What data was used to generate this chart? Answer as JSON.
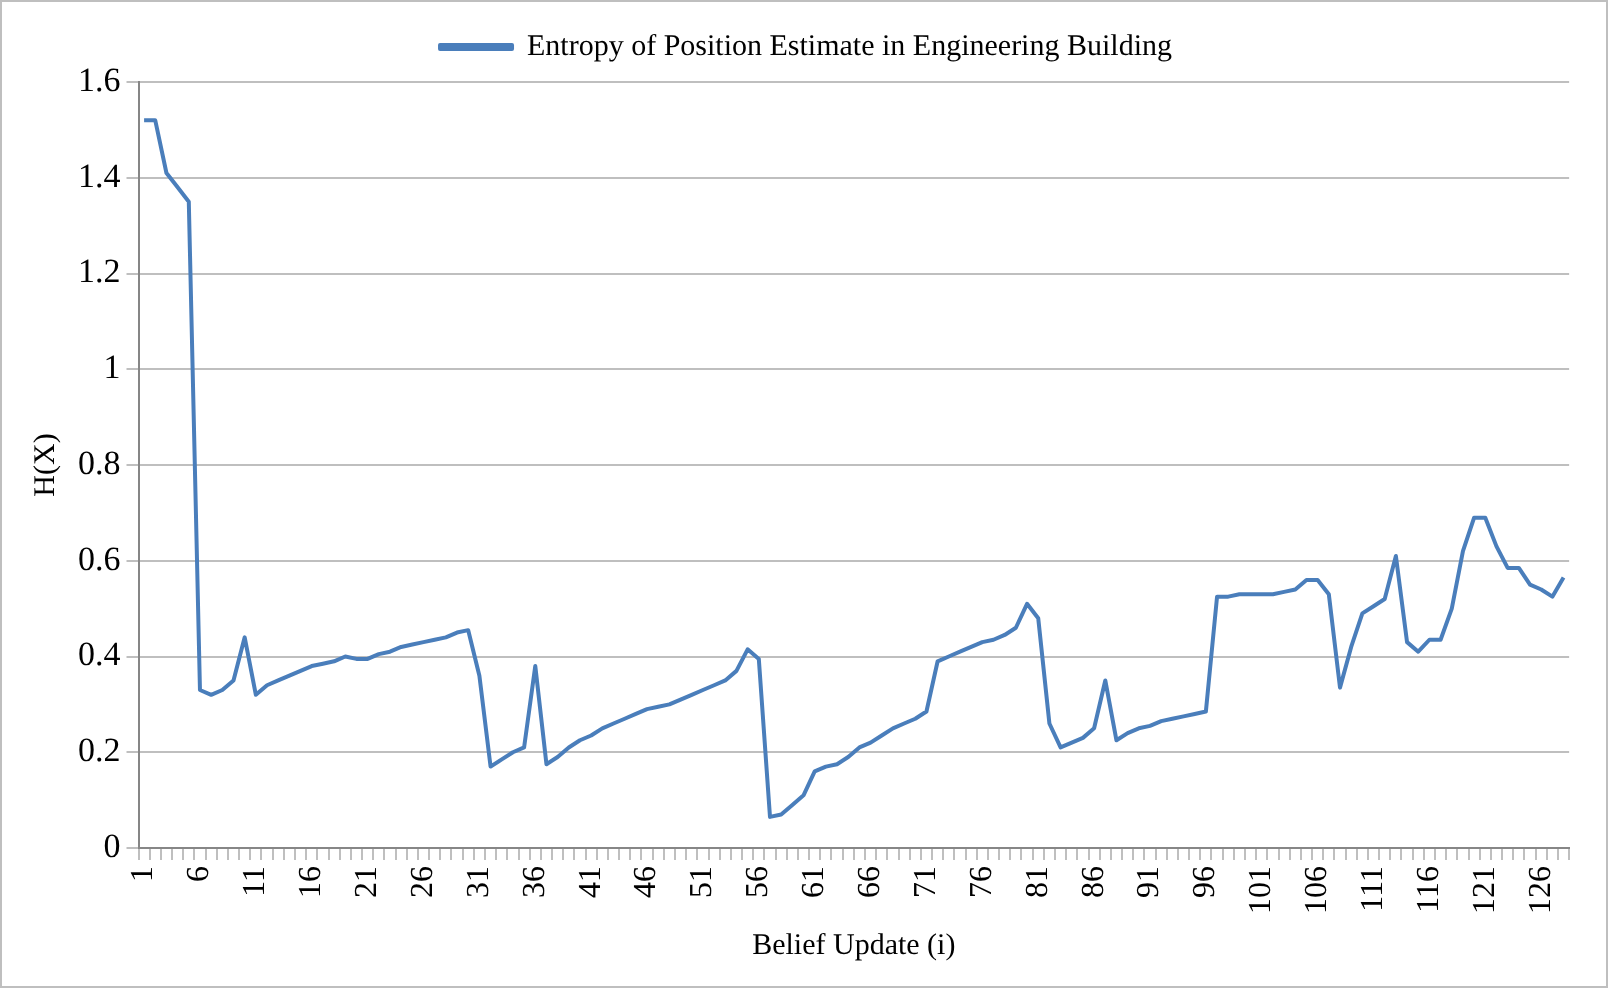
{
  "chart_data": {
    "type": "line",
    "xlabel": "Belief Update (i)",
    "ylabel": "H(X)",
    "categories": [
      "1",
      null,
      null,
      null,
      null,
      "6",
      null,
      null,
      null,
      null,
      "11",
      null,
      null,
      null,
      null,
      "16",
      null,
      null,
      null,
      null,
      "21",
      null,
      null,
      null,
      null,
      "26",
      null,
      null,
      null,
      null,
      "31",
      null,
      null,
      null,
      null,
      "36",
      null,
      null,
      null,
      null,
      "41",
      null,
      null,
      null,
      null,
      "46",
      null,
      null,
      null,
      null,
      "51",
      null,
      null,
      null,
      null,
      "56",
      null,
      null,
      null,
      null,
      "61",
      null,
      null,
      null,
      null,
      "66",
      null,
      null,
      null,
      null,
      "71",
      null,
      null,
      null,
      null,
      "76",
      null,
      null,
      null,
      null,
      "81",
      null,
      null,
      null,
      null,
      "86",
      null,
      null,
      null,
      null,
      "91",
      null,
      null,
      null,
      null,
      "96",
      null,
      null,
      null,
      null,
      "101",
      null,
      null,
      null,
      null,
      "106",
      null,
      null,
      null,
      null,
      "111",
      null,
      null,
      null,
      null,
      "116",
      null,
      null,
      null,
      null,
      "121",
      null,
      null,
      null,
      null,
      "126",
      null,
      null
    ],
    "series": [
      {
        "name": "Entropy of Position Estimate in Engineering Building",
        "color": "#4a7ebb",
        "values": [
          1.52,
          1.52,
          1.41,
          1.38,
          1.35,
          0.33,
          0.32,
          0.33,
          0.35,
          0.44,
          0.32,
          0.34,
          0.35,
          0.36,
          0.37,
          0.38,
          0.385,
          0.39,
          0.4,
          0.395,
          0.395,
          0.405,
          0.41,
          0.42,
          0.425,
          0.43,
          0.435,
          0.44,
          0.45,
          0.455,
          0.36,
          0.17,
          0.185,
          0.2,
          0.21,
          0.38,
          0.175,
          0.19,
          0.21,
          0.225,
          0.235,
          0.25,
          0.26,
          0.27,
          0.28,
          0.29,
          0.295,
          0.3,
          0.31,
          0.32,
          0.33,
          0.34,
          0.35,
          0.37,
          0.415,
          0.395,
          0.065,
          0.07,
          0.09,
          0.11,
          0.16,
          0.17,
          0.175,
          0.19,
          0.21,
          0.22,
          0.235,
          0.25,
          0.26,
          0.27,
          0.285,
          0.39,
          0.4,
          0.41,
          0.42,
          0.43,
          0.435,
          0.445,
          0.46,
          0.51,
          0.48,
          0.26,
          0.21,
          0.22,
          0.23,
          0.25,
          0.35,
          0.225,
          0.24,
          0.25,
          0.255,
          0.265,
          0.27,
          0.275,
          0.28,
          0.285,
          0.525,
          0.525,
          0.53,
          0.53,
          0.53,
          0.53,
          0.535,
          0.54,
          0.56,
          0.56,
          0.53,
          0.335,
          0.42,
          0.49,
          0.505,
          0.52,
          0.61,
          0.43,
          0.41,
          0.435,
          0.435,
          0.5,
          0.62,
          0.69,
          0.69,
          0.63,
          0.585,
          0.585,
          0.55,
          0.54,
          0.525,
          0.565
        ]
      }
    ],
    "ylim": [
      0,
      1.6
    ],
    "yticks": [
      0,
      0.2,
      0.4,
      0.6,
      0.8,
      1,
      1.2,
      1.4,
      1.6
    ],
    "grid": "y",
    "legend": "top",
    "marker": "none",
    "line_style": "solid"
  }
}
